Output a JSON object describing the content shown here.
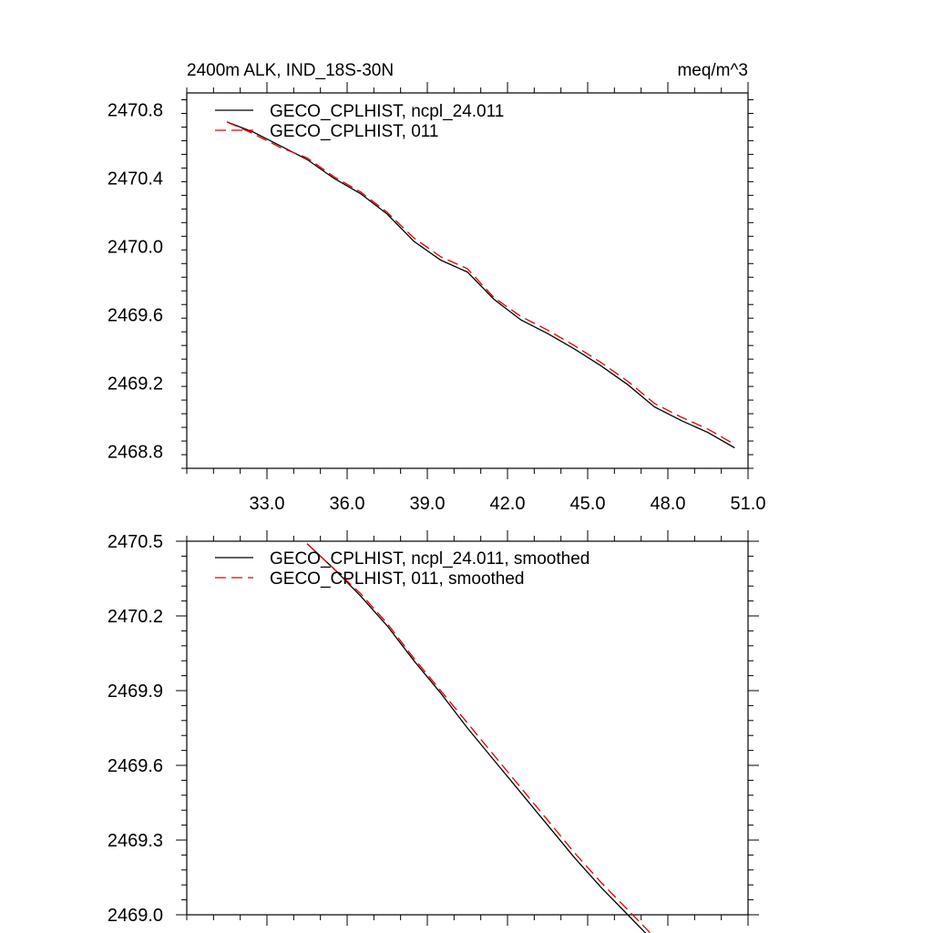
{
  "chart_data": [
    {
      "type": "line",
      "title_left": "2400m ALK, IND_18S-30N",
      "title_right": "meq/m^3",
      "xlim": [
        30.0,
        51.0
      ],
      "ylim": [
        2468.7,
        2470.9
      ],
      "x_ticks": [
        33.0,
        36.0,
        39.0,
        42.0,
        45.0,
        48.0,
        51.0
      ],
      "x_tick_labels": [
        "33.0",
        "36.0",
        "39.0",
        "42.0",
        "45.0",
        "48.0",
        "51.0"
      ],
      "y_ticks": [
        2468.8,
        2469.2,
        2469.6,
        2470.0,
        2470.4,
        2470.8
      ],
      "y_tick_labels": [
        "2468.8",
        "2469.2",
        "2469.6",
        "2470.0",
        "2470.4",
        "2470.8"
      ],
      "legend_position": "top-left",
      "series": [
        {
          "name": "GECO_CPLHIST, ncpl_24.011",
          "color": "#000000",
          "dash": "solid",
          "x": [
            31.5,
            32.5,
            33.5,
            34.5,
            35.5,
            36.5,
            37.5,
            38.5,
            39.5,
            40.5,
            41.5,
            42.5,
            43.5,
            44.5,
            45.5,
            46.5,
            47.5,
            48.5,
            49.5,
            50.5
          ],
          "y": [
            2470.73,
            2470.67,
            2470.59,
            2470.51,
            2470.4,
            2470.31,
            2470.19,
            2470.03,
            2469.92,
            2469.85,
            2469.69,
            2469.57,
            2469.49,
            2469.4,
            2469.3,
            2469.19,
            2469.06,
            2468.98,
            2468.91,
            2468.82
          ]
        },
        {
          "name": "GECO_CPLHIST, 011",
          "color": "#e00000",
          "dash": "dashed",
          "x": [
            31.5,
            32.5,
            33.5,
            34.5,
            35.5,
            36.5,
            37.5,
            38.5,
            39.5,
            40.5,
            41.5,
            42.5,
            43.5,
            44.5,
            45.5,
            46.5,
            47.5,
            48.5,
            49.5,
            50.5
          ],
          "y": [
            2470.73,
            2470.66,
            2470.58,
            2470.52,
            2470.41,
            2470.32,
            2470.2,
            2470.05,
            2469.94,
            2469.87,
            2469.7,
            2469.59,
            2469.51,
            2469.42,
            2469.32,
            2469.21,
            2469.08,
            2469.0,
            2468.93,
            2468.84
          ]
        }
      ]
    },
    {
      "type": "line",
      "xlim": [
        30.0,
        51.0
      ],
      "ylim": [
        2469.0,
        2470.5
      ],
      "x_ticks": [
        33.0,
        36.0,
        39.0,
        42.0,
        45.0,
        48.0,
        51.0
      ],
      "y_ticks": [
        2469.0,
        2469.3,
        2469.6,
        2469.9,
        2470.2,
        2470.5
      ],
      "y_tick_labels": [
        "2469.0",
        "2469.3",
        "2469.6",
        "2469.9",
        "2470.2",
        "2470.5"
      ],
      "legend_position": "top-left",
      "series": [
        {
          "name": "GECO_CPLHIST, ncpl_24.011, smoothed",
          "color": "#000000",
          "dash": "solid",
          "x": [
            34.5,
            35.5,
            36.5,
            37.5,
            38.5,
            39.5,
            40.5,
            41.5,
            42.5,
            43.5,
            44.5,
            45.5,
            46.5,
            47.5
          ],
          "y": [
            2470.49,
            2470.39,
            2470.28,
            2470.16,
            2470.02,
            2469.89,
            2469.75,
            2469.62,
            2469.49,
            2469.36,
            2469.23,
            2469.11,
            2469.0,
            2468.89
          ]
        },
        {
          "name": "GECO_CPLHIST, 011, smoothed",
          "color": "#e00000",
          "dash": "dashed",
          "x": [
            34.5,
            35.5,
            36.5,
            37.5,
            38.5,
            39.5,
            40.5,
            41.5,
            42.5,
            43.5,
            44.5,
            45.5,
            46.5,
            47.5
          ],
          "y": [
            2470.49,
            2470.39,
            2470.29,
            2470.17,
            2470.03,
            2469.9,
            2469.77,
            2469.64,
            2469.51,
            2469.38,
            2469.25,
            2469.13,
            2469.02,
            2468.91
          ]
        }
      ]
    }
  ]
}
